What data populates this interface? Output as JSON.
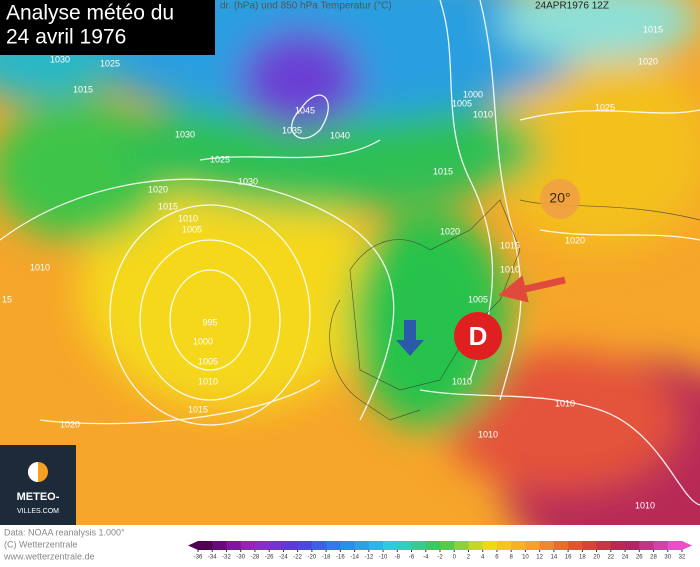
{
  "title_lines": [
    "Analyse météo du",
    "24 avril 1976"
  ],
  "header": "dr. (hPa) und 850 hPa Temperatur (°C)",
  "timestamp": "24APR1976 12Z",
  "temperature_label": "20°",
  "depression_label": "D",
  "logo_lines": [
    "METEO-",
    "VILLES.COM"
  ],
  "footer_lines": [
    "Data: NOAA reanalysis 1.000°",
    "(C) Wetterzentrale",
    "www.wetterzentrale.de"
  ],
  "isobar_labels": [
    1030,
    1025,
    1015,
    1030,
    1025,
    1030,
    1020,
    1015,
    1010,
    1005,
    1045,
    1035,
    1040,
    1000,
    1005,
    1010,
    1015,
    1020,
    1015,
    1010,
    1005,
    1025,
    1015,
    1020,
    1020,
    1010,
    995,
    1000,
    1005,
    1010,
    1015,
    1020,
    1010,
    1010,
    1010,
    1010,
    15
  ],
  "colorbar_ticks": [
    -36,
    -34,
    -32,
    -30,
    -28,
    -26,
    -24,
    -22,
    -20,
    -18,
    -16,
    -14,
    -12,
    -10,
    -8,
    -6,
    -4,
    -2,
    0,
    2,
    4,
    6,
    8,
    10,
    12,
    14,
    16,
    18,
    20,
    22,
    24,
    26,
    28,
    30,
    32
  ]
}
